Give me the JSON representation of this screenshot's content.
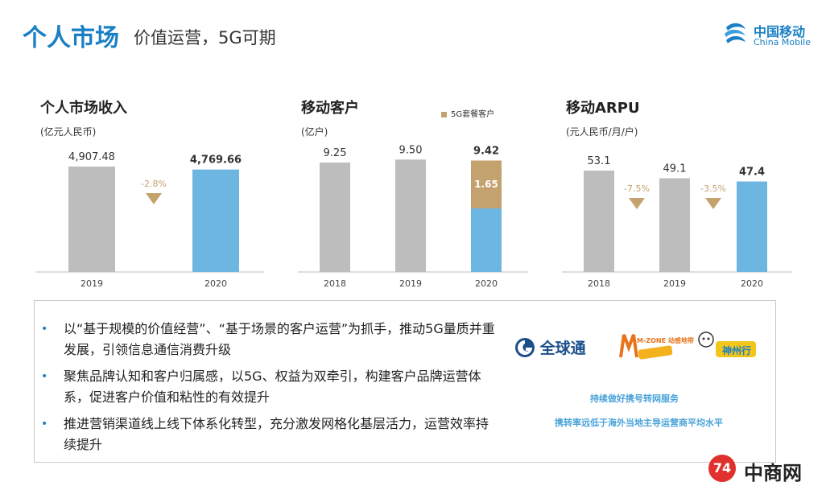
{
  "header": {
    "title": "个人市场",
    "subtitle": "价值运营，5G可期",
    "logo_cn": "中国移动",
    "logo_en": "China Mobile"
  },
  "colors": {
    "gray": "#bdbdbd",
    "blue": "#6db6e2",
    "gold": "#c3a26e",
    "accent": "#1a7fc4",
    "down": "#c3a26e"
  },
  "chart_data": [
    {
      "type": "bar",
      "title": "个人市场收入",
      "unit": "(亿元人民币)",
      "categories": [
        "2019",
        "2020"
      ],
      "values": [
        4907.48,
        4769.66
      ],
      "value_labels": [
        "4,907.48",
        "4,769.66"
      ],
      "changes": [
        {
          "after_index": 0,
          "label": "-2.8%"
        }
      ]
    },
    {
      "type": "bar",
      "title": "移动客户",
      "unit": "(亿户)",
      "categories": [
        "2018",
        "2019",
        "2020"
      ],
      "values": [
        9.25,
        9.5,
        9.42
      ],
      "value_labels": [
        "9.25",
        "9.50",
        "9.42"
      ],
      "stacked_segment": {
        "name": "5G套餐客户",
        "category_index": 2,
        "value": 1.65,
        "label": "1.65"
      },
      "legend": [
        "5G套餐客户"
      ]
    },
    {
      "type": "bar",
      "title": "移动ARPU",
      "unit": "(元人民币/月/户)",
      "categories": [
        "2018",
        "2019",
        "2020"
      ],
      "values": [
        53.1,
        49.1,
        47.4
      ],
      "value_labels": [
        "53.1",
        "49.1",
        "47.4"
      ],
      "changes": [
        {
          "after_index": 0,
          "label": "-7.5%"
        },
        {
          "after_index": 1,
          "label": "-3.5%"
        }
      ]
    }
  ],
  "bullets": [
    "以“基于规模的价值经营”、“基于场景的客户运营”为抓手，推动5G量质并重发展，引领信息通信消费升级",
    "聚焦品牌认知和客户归属感，以5G、权益为双牵引，构建客户品牌运营体系，促进客户价值和粘性的有效提升",
    "推进营销渠道线上线下体系化转型，充分激发网格化基层活力，运营效率持续提升"
  ],
  "brands": {
    "quanqiutong": "全球通",
    "mzone": "M-ZONE 动感地带",
    "shenzhouxing": "神州行"
  },
  "notes": [
    "持续做好携号转网服务",
    "携转率远低于海外当地主导运营商平均水平"
  ],
  "watermark": {
    "badge": "74",
    "text": "中商网"
  }
}
